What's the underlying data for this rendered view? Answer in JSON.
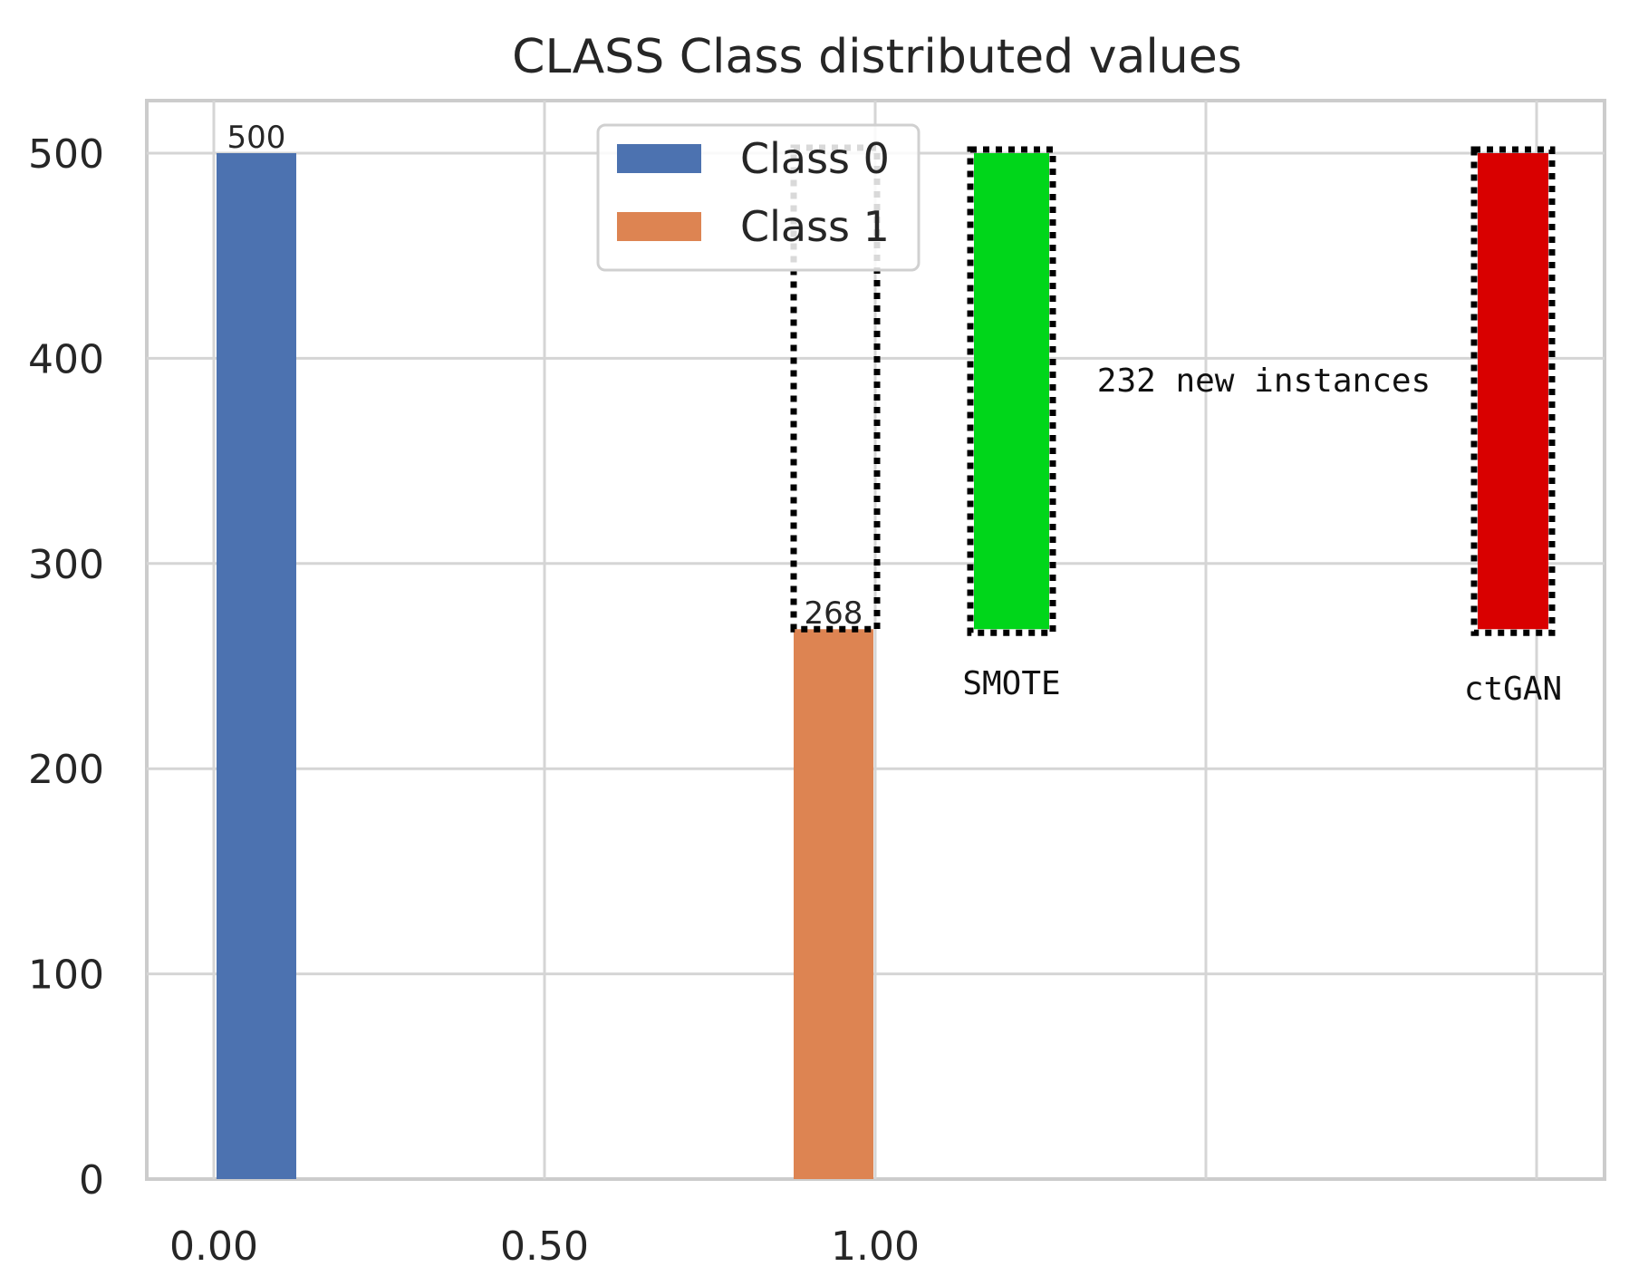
{
  "chart_data": {
    "type": "bar",
    "title": "CLASS Class distributed values",
    "xlabel": "",
    "ylabel": "",
    "xlim": [
      -0.1,
      2.1
    ],
    "ylim": [
      0,
      530
    ],
    "grid": true,
    "x_ticks": [
      0,
      0.5,
      1.0,
      1.5,
      2.0
    ],
    "x_tick_labels": [
      "0.00",
      "0.50",
      "1.00",
      "",
      ""
    ],
    "y_ticks": [
      0,
      100,
      200,
      300,
      400,
      500
    ],
    "y_tick_labels": [
      "0",
      "100",
      "200",
      "300",
      "400",
      "500"
    ],
    "series": [
      {
        "name": "Class 0",
        "x": 0.0,
        "value": 500,
        "label": "500",
        "color": "#4c72b0"
      },
      {
        "name": "Class 1",
        "x": 0.94,
        "value": 268,
        "label": "268",
        "color": "#dd8452"
      }
    ],
    "legend": {
      "placement": "top-center",
      "entries": [
        "Class 0",
        "Class 1"
      ]
    },
    "annotations": {
      "new_instances_text": "232 new instances",
      "gap_box": {
        "x": 0.94,
        "from": 268,
        "to": 500
      },
      "methods": [
        {
          "name": "SMOTE",
          "x": 1.2,
          "from": 268,
          "to": 500,
          "color": "#00d61a"
        },
        {
          "name": "ctGAN",
          "x": 1.96,
          "from": 268,
          "to": 500,
          "color": "#d90000"
        }
      ]
    }
  }
}
